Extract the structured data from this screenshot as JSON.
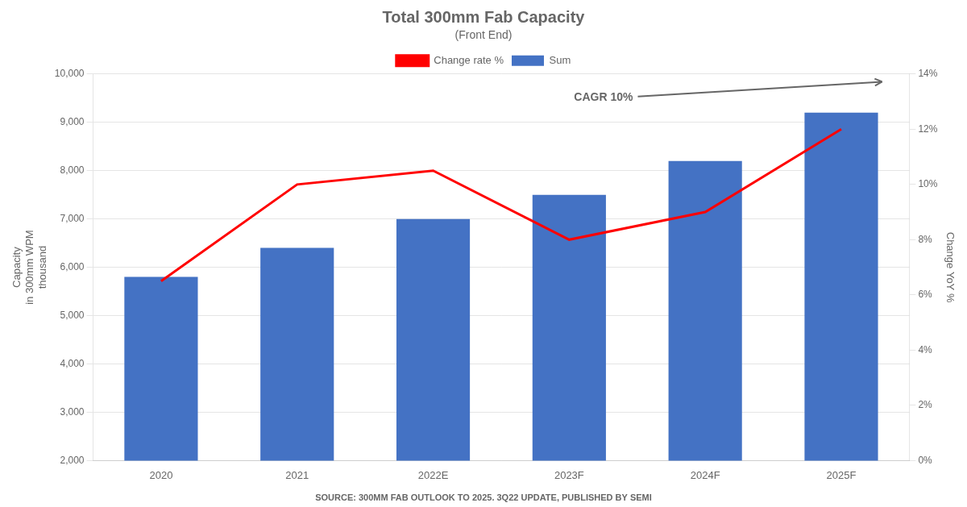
{
  "chart_data": {
    "type": "bar",
    "title": "Total 300mm Fab Capacity",
    "subtitle": "(Front End)",
    "categories": [
      "2020",
      "2021",
      "2022E",
      "2023F",
      "2024F",
      "2025F"
    ],
    "series": [
      {
        "name": "Sum",
        "type": "bar",
        "color": "#4472C4",
        "values": [
          5800,
          6400,
          7000,
          7500,
          8200,
          9200
        ]
      },
      {
        "name": "Change rate %",
        "type": "line",
        "color": "#FF0000",
        "axis": "y2",
        "values": [
          6.5,
          10.0,
          10.5,
          8.0,
          9.0,
          12.0
        ]
      }
    ],
    "ylabel": [
      "Capacity",
      "in 300mm WPM",
      "thousand"
    ],
    "y2label": "Change YoY %",
    "ylim": [
      2000,
      10000
    ],
    "yticks": [
      {
        "value": 2000,
        "label": "2,000"
      },
      {
        "value": 3000,
        "label": "3,000"
      },
      {
        "value": 4000,
        "label": "4,000"
      },
      {
        "value": 5000,
        "label": "5,000"
      },
      {
        "value": 6000,
        "label": "6,000"
      },
      {
        "value": 7000,
        "label": "7,000"
      },
      {
        "value": 8000,
        "label": "8,000"
      },
      {
        "value": 9000,
        "label": "9,000"
      },
      {
        "value": 10000,
        "label": "10,000"
      }
    ],
    "y2lim": [
      0,
      14
    ],
    "y2ticks": [
      {
        "value": 0,
        "label": "0%"
      },
      {
        "value": 2,
        "label": "2%"
      },
      {
        "value": 4,
        "label": "4%"
      },
      {
        "value": 6,
        "label": "6%"
      },
      {
        "value": 8,
        "label": "8%"
      },
      {
        "value": 10,
        "label": "10%"
      },
      {
        "value": 12,
        "label": "12%"
      },
      {
        "value": 14,
        "label": "14%"
      }
    ],
    "grid": true,
    "legend": "top",
    "annotations": [
      "CAGR 10%"
    ],
    "source": "SOURCE: 300MM FAB OUTLOOK TO 2025. 3Q22 UPDATE, PUBLISHED BY SEMI"
  }
}
